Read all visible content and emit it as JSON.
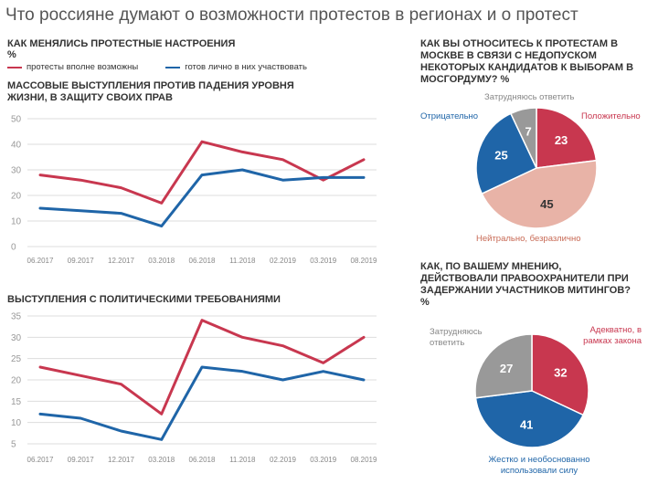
{
  "title": "Что россияне думают о возможности протестов в регионах и о протест",
  "left": {
    "heading": "КАК МЕНЯЛИСЬ ПРОТЕСТНЫЕ НАСТРОЕНИЯ",
    "unit": "%",
    "legend": [
      {
        "name": "протесты вполне возможны",
        "color": "#c8374f"
      },
      {
        "name": "готов лично в них участвовать",
        "color": "#1f65a8"
      }
    ]
  },
  "chart_data": [
    {
      "type": "line",
      "title": "МАССОВЫЕ ВЫСТУПЛЕНИЯ ПРОТИВ ПАДЕНИЯ УРОВНЯ ЖИЗНИ, В ЗАЩИТУ СВОИХ ПРАВ",
      "categories": [
        "06.2017",
        "09.2017",
        "12.2017",
        "03.2018",
        "06.2018",
        "11.2018",
        "02.2019",
        "03.2019",
        "08.2019"
      ],
      "yticks": [
        0,
        10,
        20,
        30,
        40,
        50
      ],
      "ylim": [
        0,
        50
      ],
      "grid": true,
      "series": [
        {
          "name": "протесты вполне возможны",
          "color": "#c8374f",
          "values": [
            28,
            26,
            23,
            17,
            41,
            37,
            34,
            26,
            34
          ]
        },
        {
          "name": "готов лично в них участвовать",
          "color": "#1f65a8",
          "values": [
            15,
            14,
            13,
            8,
            28,
            30,
            26,
            27,
            27
          ]
        }
      ]
    },
    {
      "type": "line",
      "title": "ВЫСТУПЛЕНИЯ С ПОЛИТИЧЕСКИМИ ТРЕБОВАНИЯМИ",
      "categories": [
        "06.2017",
        "09.2017",
        "12.2017",
        "03.2018",
        "06.2018",
        "11.2018",
        "02.2019",
        "03.2019",
        "08.2019"
      ],
      "yticks": [
        5,
        10,
        15,
        20,
        25,
        30,
        35
      ],
      "ylim": [
        5,
        35
      ],
      "grid": true,
      "series": [
        {
          "name": "протесты вполне возможны",
          "color": "#c8374f",
          "values": [
            23,
            21,
            19,
            12,
            34,
            30,
            28,
            24,
            30
          ]
        },
        {
          "name": "готов лично в них участвовать",
          "color": "#1f65a8",
          "values": [
            12,
            11,
            8,
            6,
            23,
            22,
            20,
            22,
            20
          ]
        }
      ]
    },
    {
      "type": "pie",
      "title": "КАК ВЫ ОТНОСИТЕСЬ К ПРОТЕСТАМ В МОСКВЕ В СВЯЗИ С НЕДОПУСКОМ НЕКОТОРЫХ КАНДИДАТОВ К ВЫБОРАМ В МОСГОРДУМУ? %",
      "slices": [
        {
          "label": "Положительно",
          "value": 23,
          "color": "#c8374f",
          "text_color": "#ffffff"
        },
        {
          "label": "Нейтрально, безразлично",
          "value": 45,
          "color": "#e8b3a7",
          "text_color": "#333333"
        },
        {
          "label": "Отрицательно",
          "value": 25,
          "color": "#1f65a8",
          "text_color": "#ffffff"
        },
        {
          "label": "Затрудняюсь ответить",
          "value": 7,
          "color": "#999999",
          "text_color": "#ffffff"
        }
      ]
    },
    {
      "type": "pie",
      "title": "КАК, ПО ВАШЕМУ МНЕНИЮ, ДЕЙСТВОВАЛИ ПРАВООХРАНИТЕЛИ ПРИ ЗАДЕРЖАНИИ УЧАСТНИКОВ МИТИНГОВ? %",
      "slices": [
        {
          "label": "Адекватно, в рамках закона",
          "value": 32,
          "color": "#c8374f",
          "text_color": "#ffffff"
        },
        {
          "label": "Жестко и необоснованно использовали силу",
          "value": 41,
          "color": "#1f65a8",
          "text_color": "#ffffff"
        },
        {
          "label": "Затрудняюсь ответить",
          "value": 27,
          "color": "#999999",
          "text_color": "#ffffff"
        }
      ]
    }
  ]
}
